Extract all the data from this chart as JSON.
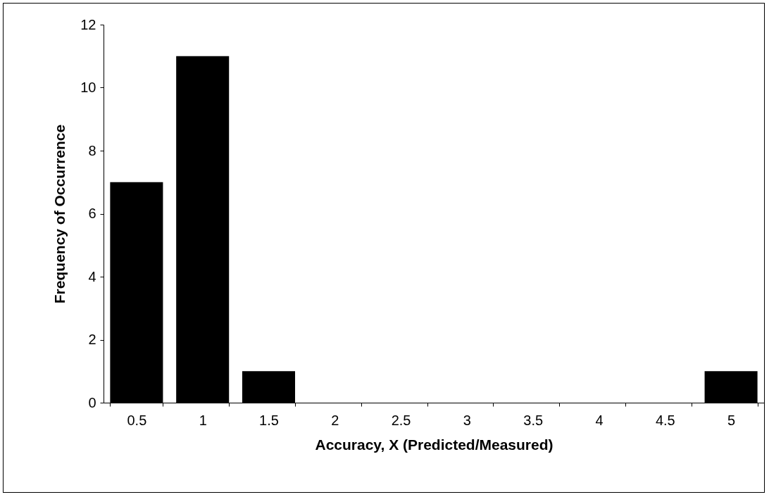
{
  "chart_data": {
    "type": "bar",
    "xlabel": "Accuracy, X (Predicted/Measured)",
    "ylabel": "Frequency of Occurrence",
    "categories": [
      "0.5",
      "1",
      "1.5",
      "2",
      "2.5",
      "3",
      "3.5",
      "4",
      "4.5",
      "5"
    ],
    "values": [
      7,
      11,
      1,
      0,
      0,
      0,
      0,
      0,
      0,
      1
    ],
    "color": "#000000",
    "ylim": [
      0,
      12
    ],
    "yticks": [
      0,
      2,
      4,
      6,
      8,
      10,
      12
    ],
    "grid": false
  }
}
